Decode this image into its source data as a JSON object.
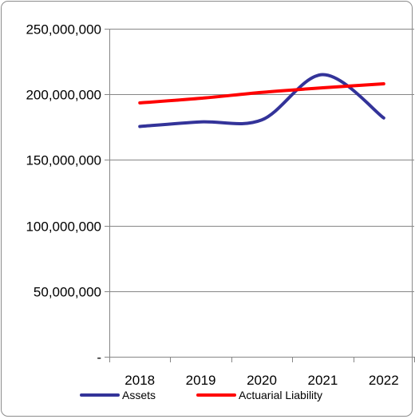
{
  "chart_data": {
    "type": "line",
    "title": "",
    "xlabel": "",
    "ylabel": "",
    "categories": [
      "2018",
      "2019",
      "2020",
      "2021",
      "2022"
    ],
    "ylim": [
      0,
      250000000
    ],
    "y_ticks": [
      0,
      50000000,
      100000000,
      150000000,
      200000000,
      250000000
    ],
    "y_tick_labels": [
      "-",
      "50,000,000",
      "100,000,000",
      "150,000,000",
      "200,000,000",
      "250,000,000"
    ],
    "grid": true,
    "legend_position": "bottom",
    "series": [
      {
        "name": "Assets",
        "color": "#333399",
        "values": [
          175500000,
          179000000,
          180500000,
          215000000,
          182000000
        ]
      },
      {
        "name": "Actuarial Liability",
        "color": "#ff0000",
        "values": [
          193500000,
          197000000,
          201500000,
          205000000,
          208000000
        ]
      }
    ]
  }
}
